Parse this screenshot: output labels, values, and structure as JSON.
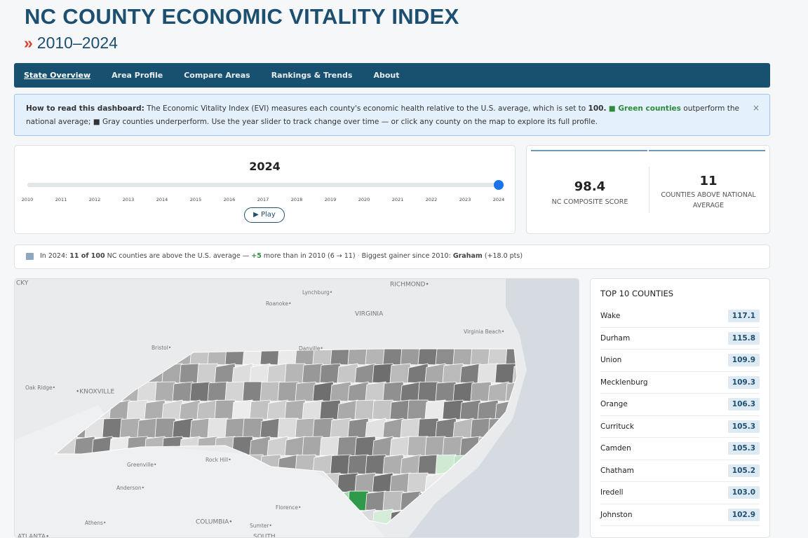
{
  "header": {
    "title": "NC COUNTY ECONOMIC VITALITY INDEX",
    "chevron": "»",
    "subtitle": "2010–2024"
  },
  "nav": [
    "State Overview",
    "Area Profile",
    "Compare Areas",
    "Rankings & Trends",
    "About"
  ],
  "info": {
    "lead": "How to read this dashboard:",
    "text1": "The Economic Vitality Index (EVI) measures each county's economic health relative to the U.S. average, which is set to",
    "base": "100.",
    "green": "■ Green counties",
    "text2": "outperform the national average; ■ Gray counties underperform. Use the year slider to track change over time — or click any county on the map to explore its full profile.",
    "close": "×"
  },
  "slider": {
    "year": 2024,
    "years": [
      2010,
      2011,
      2012,
      2013,
      2014,
      2015,
      2016,
      2017,
      2018,
      2019,
      2020,
      2021,
      2022,
      2023,
      2024
    ],
    "play": "▶ Play"
  },
  "kpis": [
    {
      "value": "98.4",
      "label": "NC COMPOSITE SCORE"
    },
    {
      "value": "11",
      "label": "COUNTIES ABOVE NATIONAL AVERAGE"
    }
  ],
  "summary": {
    "lead": "In 2024:",
    "count": "11 of 100",
    "mid": "NC counties are above the U.S. average —",
    "delta": "+5",
    "tail": "more than in 2010 (6 → 11)",
    "sep": "·",
    "gainer_lead": "Biggest gainer since 2010:",
    "gainer": "Graham",
    "gain": "(+18.0 pts)"
  },
  "map": {
    "labels": [
      "CKY",
      "Lynchburg•",
      "RICHMOND•",
      "Roanoke•",
      "VIRGINIA",
      "Virginia Beach•",
      "Bristol•",
      "Danville•",
      "Oak Ridge•",
      "•KNOXVILLE",
      "Greenville•",
      "Rock Hill•",
      "Anderson•",
      "Florence•",
      "Athens•",
      "COLUMBIA•",
      "Sumter•",
      "ATLANTA•",
      "SOUTH"
    ]
  },
  "top10": {
    "title": "TOP 10 COUNTIES",
    "rows": [
      {
        "name": "Wake",
        "score": "117.1"
      },
      {
        "name": "Durham",
        "score": "115.8"
      },
      {
        "name": "Union",
        "score": "109.9"
      },
      {
        "name": "Mecklenburg",
        "score": "109.3"
      },
      {
        "name": "Orange",
        "score": "106.3"
      },
      {
        "name": "Currituck",
        "score": "105.3"
      },
      {
        "name": "Camden",
        "score": "105.3"
      },
      {
        "name": "Chatham",
        "score": "105.2"
      },
      {
        "name": "Iredell",
        "score": "103.0"
      },
      {
        "name": "Johnston",
        "score": "102.9"
      }
    ]
  }
}
